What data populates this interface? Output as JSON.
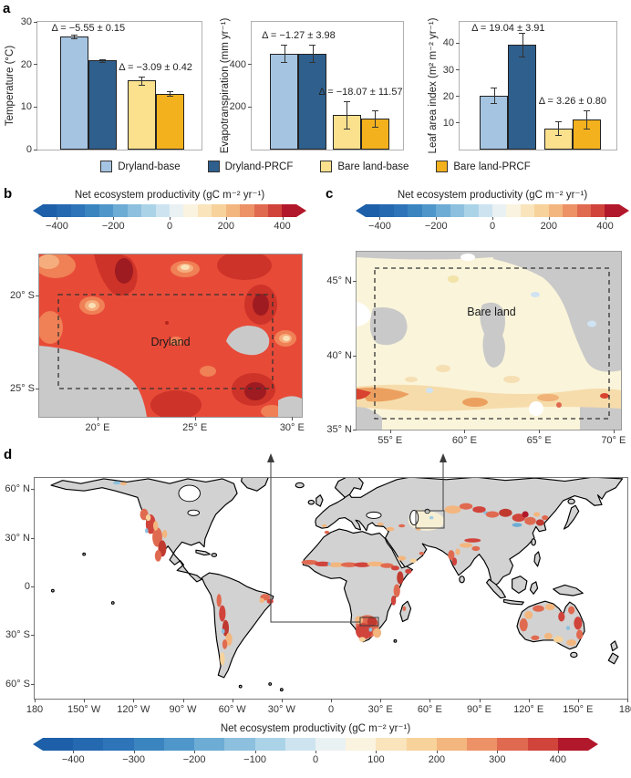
{
  "panels": {
    "a": {
      "label": "a",
      "legend": [
        {
          "label": "Dryland-base",
          "color": "#a5c4e1"
        },
        {
          "label": "Dryland-PRCF",
          "color": "#2f5f8d"
        },
        {
          "label": "Bare land-base",
          "color": "#fbe08d"
        },
        {
          "label": "Bare land-PRCF",
          "color": "#f3b11d"
        }
      ]
    },
    "b": {
      "label": "b",
      "colorbar_title": "Net ecosystem productivity (gC m⁻² yr⁻¹)",
      "region_label": "Dryland",
      "axes": {
        "lon": {
          "range": [
            17,
            30.5
          ],
          "ticks": [
            {
              "v": 20,
              "label": "20° E"
            },
            {
              "v": 25,
              "label": "25° E"
            },
            {
              "v": 30,
              "label": "30° E"
            }
          ]
        },
        "lat": {
          "range": [
            -17.8,
            -26.5
          ],
          "ticks": [
            {
              "v": -20,
              "label": "20° S"
            },
            {
              "v": -25,
              "label": "25° S"
            }
          ]
        }
      }
    },
    "c": {
      "label": "c",
      "colorbar_title": "Net ecosystem productivity (gC m⁻² yr⁻¹)",
      "region_label": "Bare land",
      "axes": {
        "lon": {
          "range": [
            52.75,
            70.5
          ],
          "ticks": [
            {
              "v": 55,
              "label": "55° E"
            },
            {
              "v": 60,
              "label": "60° E"
            },
            {
              "v": 65,
              "label": "65° E"
            },
            {
              "v": 70,
              "label": "70° E"
            }
          ]
        },
        "lat": {
          "range": [
            47,
            35
          ],
          "ticks": [
            {
              "v": 45,
              "label": "45° N"
            },
            {
              "v": 40,
              "label": "40° N"
            },
            {
              "v": 35,
              "label": "35° N"
            }
          ]
        }
      }
    },
    "d": {
      "label": "d",
      "colorbar_title": "Net ecosystem productivity (gC m⁻² yr⁻¹)",
      "axes": {
        "lon": {
          "range": [
            -180,
            180
          ],
          "ticks": [
            {
              "v": -180,
              "label": "180"
            },
            {
              "v": -150,
              "label": "150° W"
            },
            {
              "v": -120,
              "label": "120° W"
            },
            {
              "v": -90,
              "label": "90° W"
            },
            {
              "v": -60,
              "label": "60° W"
            },
            {
              "v": -30,
              "label": "30° W"
            },
            {
              "v": 0,
              "label": "0"
            },
            {
              "v": 30,
              "label": "30° E"
            },
            {
              "v": 60,
              "label": "60° E"
            },
            {
              "v": 90,
              "label": "90° E"
            },
            {
              "v": 120,
              "label": "120° E"
            },
            {
              "v": 150,
              "label": "150° E"
            },
            {
              "v": 180,
              "label": "180"
            }
          ]
        },
        "lat": {
          "range": [
            66.8,
            -69.1
          ],
          "ticks": [
            {
              "v": 60,
              "label": "60° N"
            },
            {
              "v": 30,
              "label": "30° N"
            },
            {
              "v": 0,
              "label": "0"
            },
            {
              "v": -30,
              "label": "30° S"
            },
            {
              "v": -60,
              "label": "60° S"
            }
          ]
        }
      }
    }
  },
  "colorbar": {
    "range": [
      -450,
      450
    ],
    "colors": [
      "#1d5fa8",
      "#2569b0",
      "#2e74b8",
      "#3a85c0",
      "#4f97ca",
      "#6dacd4",
      "#8dc0de",
      "#abd3e8",
      "#cde4f0",
      "#eaf1f3",
      "#faf3df",
      "#f9e4bc",
      "#f7d29a",
      "#f3b67e",
      "#ec9266",
      "#e06a50",
      "#d0443c",
      "#b2182b"
    ],
    "bc_ticks": [
      -400,
      -200,
      0,
      200,
      400
    ],
    "d_ticks": [
      -400,
      -300,
      -200,
      -100,
      0,
      100,
      200,
      300,
      400
    ]
  },
  "chart_data": [
    {
      "type": "bar",
      "id": "temperature",
      "ylabel": "Temperature (°C)",
      "ylim": [
        0,
        30
      ],
      "yticks": [
        0,
        10,
        20,
        30
      ],
      "categories": [
        "Dryland",
        "Bare land"
      ],
      "groups": [
        {
          "category": "Dryland",
          "delta": "Δ = −5.55 ± 0.15",
          "bars": [
            {
              "series": "Dryland-base",
              "value": 26.5,
              "err": 0.4
            },
            {
              "series": "Dryland-PRCF",
              "value": 20.95,
              "err": 0.3
            }
          ]
        },
        {
          "category": "Bare land",
          "delta": "Δ = −3.09 ± 0.42",
          "bars": [
            {
              "series": "Bare land-base",
              "value": 16.2,
              "err": 0.9
            },
            {
              "series": "Bare land-PRCF",
              "value": 13.1,
              "err": 0.55
            }
          ]
        }
      ]
    },
    {
      "type": "bar",
      "id": "evapotranspiration",
      "ylabel": "Evapotranspiration (mm yr⁻¹)",
      "ylim": [
        0,
        600
      ],
      "yticks": [
        200,
        400
      ],
      "categories": [
        "Dryland",
        "Bare land"
      ],
      "groups": [
        {
          "category": "Dryland",
          "delta": "Δ = −1.27 ± 3.98",
          "bars": [
            {
              "series": "Dryland-base",
              "value": 452,
              "err": 42
            },
            {
              "series": "Dryland-PRCF",
              "value": 450.7,
              "err": 41
            }
          ]
        },
        {
          "category": "Bare land",
          "delta": "Δ = −18.07 ± 11.57",
          "bars": [
            {
              "series": "Bare land-base",
              "value": 163,
              "err": 65
            },
            {
              "series": "Bare land-PRCF",
              "value": 145,
              "err": 38
            }
          ]
        }
      ]
    },
    {
      "type": "bar",
      "id": "leaf-area-index",
      "ylabel": "Leaf area index (m² m⁻² yr⁻¹)",
      "ylim": [
        0,
        48
      ],
      "yticks": [
        10,
        20,
        30,
        40
      ],
      "categories": [
        "Dryland",
        "Bare land"
      ],
      "groups": [
        {
          "category": "Dryland",
          "delta": "Δ = 19.04 ± 3.91",
          "bars": [
            {
              "series": "Dryland-base",
              "value": 20.3,
              "err": 2.9
            },
            {
              "series": "Dryland-PRCF",
              "value": 39.34,
              "err": 4.4
            }
          ]
        },
        {
          "category": "Bare land",
          "delta": "Δ = 3.26 ± 0.80",
          "bars": [
            {
              "series": "Bare land-base",
              "value": 8.0,
              "err": 2.6
            },
            {
              "series": "Bare land-PRCF",
              "value": 11.26,
              "err": 3.4
            }
          ]
        }
      ]
    },
    {
      "type": "heatmap",
      "id": "map-dryland",
      "panel": "b",
      "title": "Net ecosystem productivity (gC m⁻² yr⁻¹)",
      "region_label": "Dryland",
      "lon_ticks": [
        "20° E",
        "25° E",
        "30° E"
      ],
      "lat_ticks": [
        "20° S",
        "25° S"
      ],
      "colorbar_range": [
        -450,
        450
      ],
      "colorbar_ticks": [
        -400,
        -200,
        0,
        200,
        400
      ],
      "dominant_values": "mostly +200 to +450 (red shades); gray = no data"
    },
    {
      "type": "heatmap",
      "id": "map-bare-land",
      "panel": "c",
      "title": "Net ecosystem productivity (gC m⁻² yr⁻¹)",
      "region_label": "Bare land",
      "lon_ticks": [
        "55° E",
        "60° E",
        "65° E",
        "70° E"
      ],
      "lat_ticks": [
        "45° N",
        "40° N",
        "35° N"
      ],
      "colorbar_range": [
        -450,
        450
      ],
      "colorbar_ticks": [
        -400,
        -200,
        0,
        200,
        400
      ],
      "dominant_values": "mostly 0 to +50 (pale cream); orange band +100 to +300 along the southern edge; gray = no data"
    },
    {
      "type": "heatmap",
      "id": "map-global",
      "panel": "d",
      "title": "Net ecosystem productivity (gC m⁻² yr⁻¹)",
      "lon_ticks": [
        "180",
        "150° W",
        "120° W",
        "90° W",
        "60° W",
        "30° W",
        "0",
        "30° E",
        "60° E",
        "90° E",
        "120° E",
        "150° E",
        "180"
      ],
      "lat_ticks": [
        "60° N",
        "30° N",
        "0",
        "30° S",
        "60° S"
      ],
      "colorbar_range": [
        -450,
        450
      ],
      "colorbar_ticks": [
        -400,
        -300,
        -200,
        -100,
        0,
        100,
        200,
        300,
        400
      ],
      "dominant_values": "positive (warm-colored) NEP patches over global dryland belts; gray land = no data; white = ocean"
    }
  ]
}
